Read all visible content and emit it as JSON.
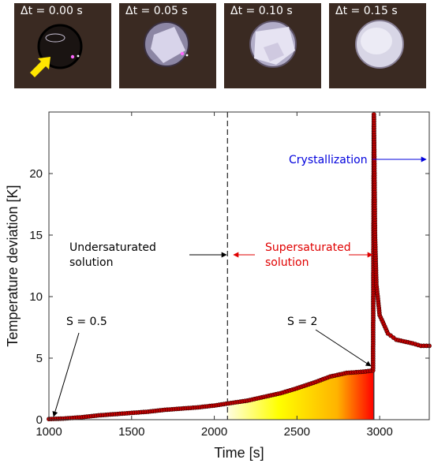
{
  "frames": [
    {
      "label": "Δt = 0.00 s",
      "state": "initial"
    },
    {
      "label": "Δt = 0.05 s",
      "state": "partial"
    },
    {
      "label": "Δt = 0.10 s",
      "state": "mostly"
    },
    {
      "label": "Δt = 0.15 s",
      "state": "full"
    }
  ],
  "chart_data": {
    "type": "line",
    "xlabel": "Time [s]",
    "ylabel": "Temperature deviation [K]",
    "xlim": [
      1000,
      3300
    ],
    "ylim": [
      0,
      25
    ],
    "xticks": [
      1000,
      1500,
      2000,
      2500,
      3000
    ],
    "yticks": [
      0,
      5,
      10,
      15,
      20
    ],
    "grid": false,
    "series": [
      {
        "marker": "circle",
        "color": "#c00000",
        "x": [
          1000,
          1100,
          1200,
          1300,
          1400,
          1500,
          1600,
          1700,
          1800,
          1900,
          2000,
          2100,
          2200,
          2300,
          2400,
          2500,
          2600,
          2700,
          2800,
          2900,
          2960,
          2965,
          2968,
          2972,
          2980,
          3000,
          3050,
          3100,
          3200,
          3250,
          3300
        ],
        "y": [
          0.05,
          0.1,
          0.2,
          0.35,
          0.45,
          0.55,
          0.65,
          0.8,
          0.9,
          1.0,
          1.15,
          1.35,
          1.55,
          1.85,
          2.15,
          2.55,
          3.0,
          3.5,
          3.8,
          3.9,
          4.0,
          24.8,
          21.0,
          15.0,
          11.0,
          8.5,
          7.0,
          6.5,
          6.2,
          6.0,
          6.0
        ]
      }
    ],
    "vlines": [
      {
        "x": 2080,
        "style": "dashed",
        "color": "#333333"
      },
      {
        "x": 2965,
        "style": "solid",
        "color": "#333333"
      }
    ],
    "shaded_region": {
      "x_start": 2080,
      "x_end": 2965,
      "gradient": [
        "#fffde0",
        "#ffff00",
        "#ffb300",
        "#ff0000"
      ]
    },
    "annotations": [
      {
        "text": "S = 0.5",
        "color": "#000000"
      },
      {
        "text": "S = 2",
        "color": "#000000"
      },
      {
        "text": "Undersaturated",
        "color": "#000000"
      },
      {
        "text": "solution",
        "color": "#000000"
      },
      {
        "text": "Supersaturated",
        "color": "#e00000"
      },
      {
        "text": "solution",
        "color": "#e00000"
      },
      {
        "text": "Crystallization",
        "color": "#0000dd"
      }
    ]
  }
}
